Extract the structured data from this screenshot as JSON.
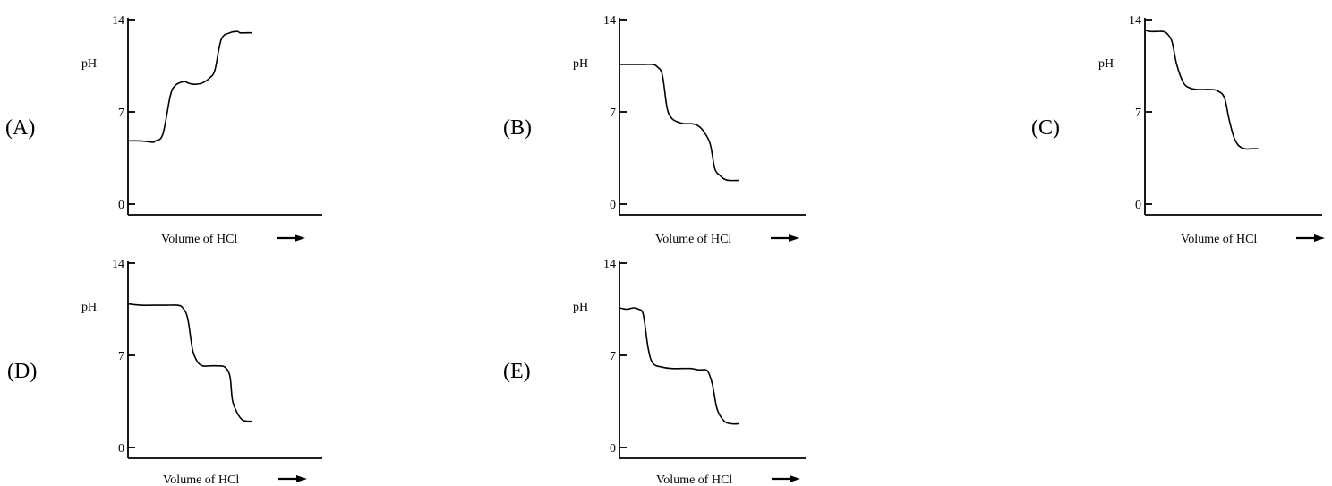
{
  "chart_data": [
    {
      "type": "line",
      "label": "(A)",
      "xlabel": "Volume of HCl",
      "ylabel": "pH",
      "yticks": [
        "14",
        "7",
        "0"
      ],
      "ylim": [
        0,
        14
      ],
      "series": [
        {
          "x": [
            0,
            0.1,
            0.2,
            0.22,
            0.28,
            0.34,
            0.38,
            0.45,
            0.48,
            0.52,
            0.55,
            0.6,
            0.66,
            0.7,
            0.75,
            0.82,
            0.88,
            0.9,
            0.95,
            1.0
          ],
          "y": [
            4.8,
            4.8,
            4.7,
            4.8,
            5.3,
            8.2,
            9.0,
            9.3,
            9.2,
            9.1,
            9.1,
            9.2,
            9.6,
            10.2,
            12.5,
            13.0,
            13.1,
            13.0,
            13.0,
            13.0
          ]
        }
      ]
    },
    {
      "type": "line",
      "label": "(B)",
      "xlabel": "Volume of HCl",
      "ylabel": "pH",
      "yticks": [
        "14",
        "7",
        "0"
      ],
      "ylim": [
        0,
        14
      ],
      "series": [
        {
          "x": [
            0,
            0.1,
            0.2,
            0.28,
            0.32,
            0.36,
            0.4,
            0.44,
            0.5,
            0.55,
            0.6,
            0.65,
            0.7,
            0.76,
            0.8,
            0.84,
            0.88,
            0.92,
            1.0
          ],
          "y": [
            10.6,
            10.6,
            10.6,
            10.6,
            10.4,
            9.8,
            7.3,
            6.5,
            6.2,
            6.1,
            6.1,
            6.0,
            5.6,
            4.6,
            2.7,
            2.2,
            1.9,
            1.8,
            1.8
          ]
        }
      ]
    },
    {
      "type": "line",
      "label": "(C)",
      "xlabel": "Volume of HCl",
      "ylabel": "pH",
      "yticks": [
        "14",
        "7",
        "0"
      ],
      "ylim": [
        0,
        14
      ],
      "series": [
        {
          "x": [
            0,
            0.05,
            0.1,
            0.16,
            0.2,
            0.24,
            0.28,
            0.34,
            0.4,
            0.46,
            0.52,
            0.58,
            0.64,
            0.7,
            0.74,
            0.78,
            0.82,
            0.88,
            0.94,
            1.0
          ],
          "y": [
            13.2,
            13.1,
            13.1,
            13.1,
            12.9,
            12.3,
            10.6,
            9.2,
            8.8,
            8.7,
            8.7,
            8.7,
            8.6,
            8.1,
            6.5,
            5.2,
            4.5,
            4.2,
            4.2,
            4.2
          ]
        }
      ]
    },
    {
      "type": "line",
      "label": "(D)",
      "xlabel": "Volume of HCl",
      "ylabel": "pH",
      "yticks": [
        "14",
        "7",
        "0"
      ],
      "ylim": [
        0,
        14
      ],
      "series": [
        {
          "x": [
            0,
            0.1,
            0.2,
            0.3,
            0.4,
            0.44,
            0.48,
            0.52,
            0.56,
            0.6,
            0.66,
            0.72,
            0.78,
            0.82,
            0.84,
            0.88,
            0.92,
            0.96,
            1.0
          ],
          "y": [
            10.9,
            10.8,
            10.8,
            10.8,
            10.8,
            10.6,
            9.8,
            7.4,
            6.5,
            6.2,
            6.2,
            6.2,
            6.1,
            5.4,
            3.6,
            2.6,
            2.1,
            2.0,
            2.0
          ]
        }
      ]
    },
    {
      "type": "line",
      "label": "(E)",
      "xlabel": "Volume of HCl",
      "ylabel": "pH",
      "yticks": [
        "14",
        "7",
        "0"
      ],
      "ylim": [
        0,
        14
      ],
      "series": [
        {
          "x": [
            0,
            0.06,
            0.12,
            0.16,
            0.2,
            0.24,
            0.28,
            0.36,
            0.44,
            0.52,
            0.6,
            0.66,
            0.7,
            0.74,
            0.78,
            0.82,
            0.88,
            0.94,
            1.0
          ],
          "y": [
            10.6,
            10.5,
            10.6,
            10.5,
            10.1,
            7.6,
            6.4,
            6.1,
            6.0,
            6.0,
            6.0,
            5.9,
            5.9,
            5.8,
            4.8,
            2.9,
            2.0,
            1.8,
            1.8
          ]
        }
      ]
    }
  ]
}
